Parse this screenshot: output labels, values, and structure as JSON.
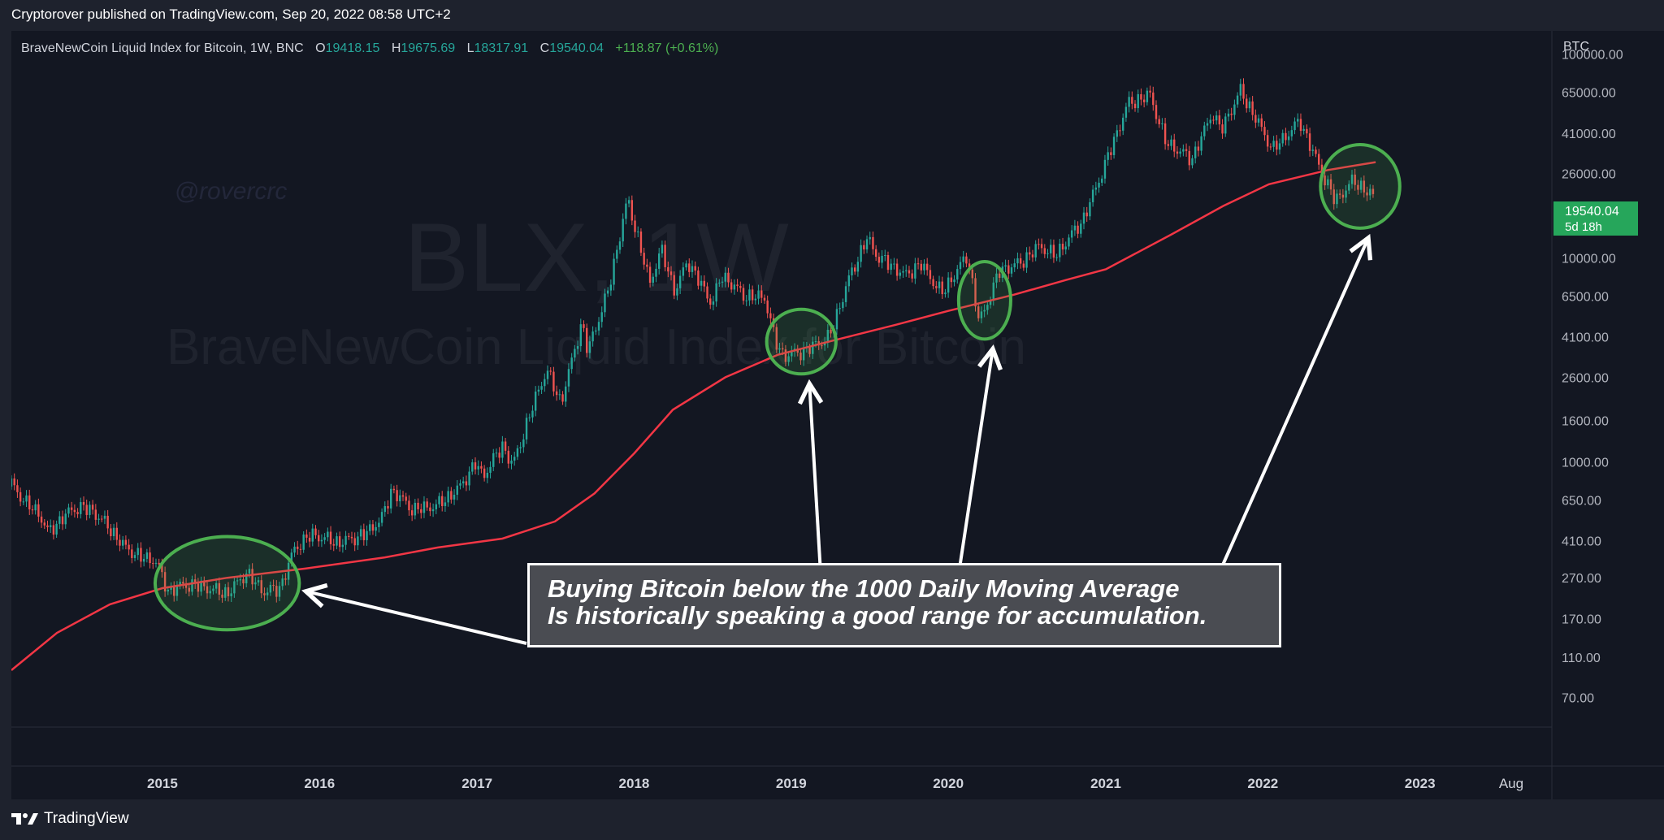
{
  "header": {
    "publisher": "Cryptorover published on TradingView.com, Sep 20, 2022 08:58 UTC+2"
  },
  "legend": {
    "symbol": "BraveNewCoin Liquid Index for Bitcoin, 1W, BNC",
    "open_label": "O",
    "open": "19418.15",
    "high_label": "H",
    "high": "19675.69",
    "low_label": "L",
    "low": "18317.91",
    "close_label": "C",
    "close": "19540.04",
    "change": "+118.87 (+0.61%)"
  },
  "watermark": {
    "symbol": "BLX, 1W",
    "name": "BraveNewCoin Liquid Index for Bitcoin",
    "author": "@rovercrc"
  },
  "price_badge": {
    "price": "19540.04",
    "countdown": "5d 18h"
  },
  "annotation": {
    "line1": "Buying Bitcoin below the 1000 Daily Moving Average",
    "line2": "Is historically speaking a good range for accumulation."
  },
  "footer": {
    "brand": "TradingView"
  },
  "colors": {
    "background": "#131722",
    "up": "#26a69a",
    "down": "#ef5350",
    "ma": "#f23645",
    "circle": "#4caf50",
    "badge": "#26a65b"
  },
  "chart_data": {
    "type": "candlestick",
    "title": "BraveNewCoin Liquid Index for Bitcoin, 1W, BNC",
    "y_axis_label": "BTC",
    "y_scale": "log",
    "ylim": [
      50,
      130000
    ],
    "y_ticks": [
      "100000.00",
      "65000.00",
      "41000.00",
      "26000.00",
      "10000.00",
      "6500.00",
      "4100.00",
      "2600.00",
      "1600.00",
      "1000.00",
      "650.00",
      "410.00",
      "270.00",
      "170.00",
      "110.00",
      "70.00"
    ],
    "x_ticks": [
      "2015",
      "2016",
      "2017",
      "2018",
      "2019",
      "2020",
      "2021",
      "2022",
      "2023",
      "Aug"
    ],
    "x_tick_dates": [
      "2015-01-01",
      "2016-01-01",
      "2017-01-01",
      "2018-01-01",
      "2019-01-01",
      "2020-01-01",
      "2021-01-01",
      "2022-01-01",
      "2023-01-01",
      "2023-08-01"
    ],
    "x_range": [
      "2014-01-15",
      "2023-10-08"
    ],
    "price_series": {
      "name": "BLX",
      "points": [
        [
          "2014-01-15",
          780
        ],
        [
          "2014-02-20",
          620
        ],
        [
          "2014-03-20",
          560
        ],
        [
          "2014-04-10",
          450
        ],
        [
          "2014-05-25",
          560
        ],
        [
          "2014-06-20",
          600
        ],
        [
          "2014-07-20",
          580
        ],
        [
          "2014-08-25",
          490
        ],
        [
          "2014-10-01",
          390
        ],
        [
          "2014-11-10",
          340
        ],
        [
          "2014-12-15",
          330
        ],
        [
          "2015-01-15",
          230
        ],
        [
          "2015-02-20",
          250
        ],
        [
          "2015-04-01",
          245
        ],
        [
          "2015-06-01",
          225
        ],
        [
          "2015-07-15",
          285
        ],
        [
          "2015-08-25",
          230
        ],
        [
          "2015-10-01",
          240
        ],
        [
          "2015-11-05",
          380
        ],
        [
          "2015-12-15",
          440
        ],
        [
          "2016-02-15",
          400
        ],
        [
          "2016-04-15",
          440
        ],
        [
          "2016-05-25",
          530
        ],
        [
          "2016-06-17",
          730
        ],
        [
          "2016-08-05",
          580
        ],
        [
          "2016-09-30",
          610
        ],
        [
          "2016-11-20",
          740
        ],
        [
          "2016-12-28",
          980
        ],
        [
          "2017-01-15",
          850
        ],
        [
          "2017-03-01",
          1200
        ],
        [
          "2017-03-25",
          960
        ],
        [
          "2017-05-25",
          2300
        ],
        [
          "2017-06-12",
          2800
        ],
        [
          "2017-07-15",
          1950
        ],
        [
          "2017-09-01",
          4800
        ],
        [
          "2017-09-15",
          3500
        ],
        [
          "2017-11-01",
          6800
        ],
        [
          "2017-12-17",
          19500
        ],
        [
          "2018-02-06",
          7500
        ],
        [
          "2018-03-05",
          11000
        ],
        [
          "2018-04-06",
          6800
        ],
        [
          "2018-05-05",
          9700
        ],
        [
          "2018-06-30",
          6000
        ],
        [
          "2018-07-25",
          8200
        ],
        [
          "2018-09-15",
          6500
        ],
        [
          "2018-11-01",
          6400
        ],
        [
          "2018-11-25",
          3900
        ],
        [
          "2018-12-15",
          3300
        ],
        [
          "2019-02-01",
          3500
        ],
        [
          "2019-03-31",
          4100
        ],
        [
          "2019-05-15",
          7900
        ],
        [
          "2019-06-26",
          12500
        ],
        [
          "2019-07-20",
          10200
        ],
        [
          "2019-09-25",
          8200
        ],
        [
          "2019-10-28",
          9400
        ],
        [
          "2019-12-17",
          6700
        ],
        [
          "2020-02-14",
          10300
        ],
        [
          "2020-03-13",
          4800
        ],
        [
          "2020-04-30",
          8700
        ],
        [
          "2020-06-15",
          9400
        ],
        [
          "2020-08-01",
          11500
        ],
        [
          "2020-09-05",
          10200
        ],
        [
          "2020-11-10",
          15500
        ],
        [
          "2020-12-31",
          29000
        ],
        [
          "2021-02-21",
          57000
        ],
        [
          "2021-04-14",
          63000
        ],
        [
          "2021-05-20",
          37000
        ],
        [
          "2021-07-20",
          30500
        ],
        [
          "2021-09-06",
          52000
        ],
        [
          "2021-09-25",
          42000
        ],
        [
          "2021-11-10",
          66000
        ],
        [
          "2022-01-24",
          34000
        ],
        [
          "2022-03-28",
          47000
        ],
        [
          "2022-05-12",
          28000
        ],
        [
          "2022-06-18",
          19000
        ],
        [
          "2022-07-30",
          24000
        ],
        [
          "2022-09-20",
          19540.04
        ]
      ]
    },
    "ma_series": {
      "name": "1000 Daily Moving Average",
      "points": [
        [
          "2014-01-15",
          95
        ],
        [
          "2014-05-01",
          145
        ],
        [
          "2014-09-01",
          200
        ],
        [
          "2015-01-01",
          240
        ],
        [
          "2015-06-01",
          270
        ],
        [
          "2015-12-01",
          300
        ],
        [
          "2016-06-01",
          340
        ],
        [
          "2016-10-01",
          380
        ],
        [
          "2017-03-01",
          420
        ],
        [
          "2017-07-01",
          510
        ],
        [
          "2017-10-01",
          700
        ],
        [
          "2018-01-01",
          1100
        ],
        [
          "2018-04-01",
          1800
        ],
        [
          "2018-08-01",
          2600
        ],
        [
          "2018-12-01",
          3350
        ],
        [
          "2019-04-01",
          3900
        ],
        [
          "2019-09-01",
          4700
        ],
        [
          "2020-01-01",
          5500
        ],
        [
          "2020-06-01",
          6600
        ],
        [
          "2020-10-01",
          7800
        ],
        [
          "2021-01-01",
          8800
        ],
        [
          "2021-06-01",
          13000
        ],
        [
          "2021-10-01",
          18000
        ],
        [
          "2022-01-15",
          23000
        ],
        [
          "2022-06-01",
          27000
        ],
        [
          "2022-09-20",
          29500
        ]
      ]
    },
    "annotations": {
      "highlight_regions": [
        {
          "from": "2014-12-15",
          "to": "2015-11-15",
          "low": 150,
          "high": 430
        },
        {
          "from": "2018-11-05",
          "to": "2019-04-15",
          "low": 2700,
          "high": 5600
        },
        {
          "from": "2020-01-25",
          "to": "2020-05-25",
          "low": 4000,
          "high": 9600
        },
        {
          "from": "2022-05-15",
          "to": "2022-11-15",
          "low": 14000,
          "high": 36000
        }
      ],
      "text": "Buying Bitcoin below the 1000 Daily Moving Average Is historically speaking a good range for accumulation."
    }
  }
}
